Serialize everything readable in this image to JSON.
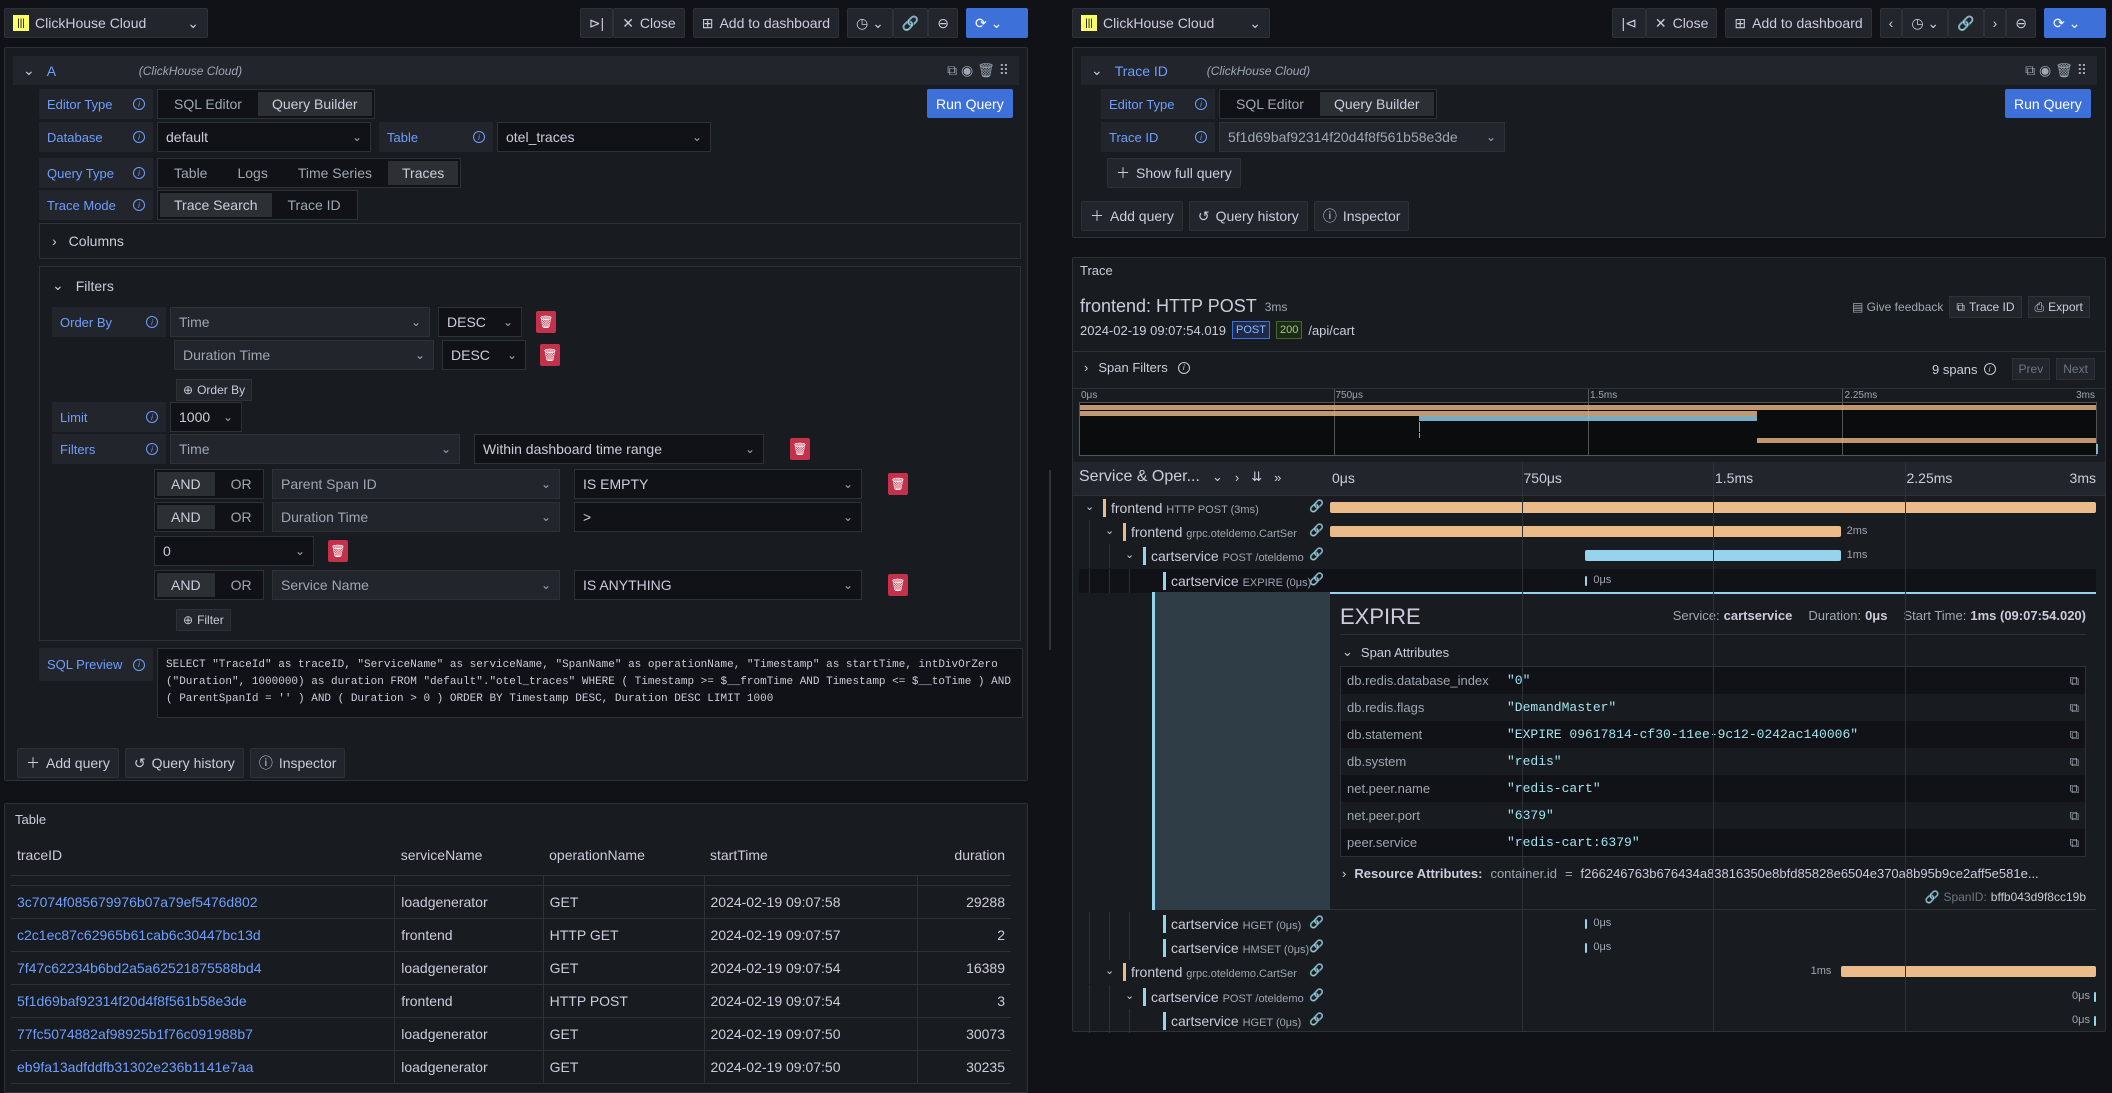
{
  "colors": {
    "accent": "#3d71d9",
    "label": "#6e9fff",
    "danger": "#c4314b",
    "span_frontend": "#ecbb8a",
    "span_cartservice": "#96d3ec"
  },
  "left": {
    "datasource": "ClickHouse Cloud",
    "toolbar": {
      "close": "Close",
      "add_to_dashboard": "Add to dashboard"
    },
    "query": {
      "ref": "A",
      "source": "(ClickHouse Cloud)",
      "run": "Run Query",
      "editor_type_label": "Editor Type",
      "editor_types": [
        "SQL Editor",
        "Query Builder"
      ],
      "database_label": "Database",
      "database": "default",
      "table_label": "Table",
      "table": "otel_traces",
      "query_type_label": "Query Type",
      "query_types": [
        "Table",
        "Logs",
        "Time Series",
        "Traces"
      ],
      "trace_mode_label": "Trace Mode",
      "trace_modes": [
        "Trace Search",
        "Trace ID"
      ],
      "columns": "Columns",
      "filters_title": "Filters",
      "order_by_label": "Order By",
      "order_by": [
        {
          "field": "Time",
          "dir": "DESC"
        },
        {
          "field": "Duration Time",
          "dir": "DESC"
        }
      ],
      "add_order_by": "Order By",
      "limit_label": "Limit",
      "limit": "1000",
      "filters_label": "Filters",
      "time_field": "Time",
      "time_op": "Within dashboard time range",
      "and": "AND",
      "or": "OR",
      "filters": [
        {
          "field": "Parent Span ID",
          "op": "IS EMPTY"
        },
        {
          "field": "Duration Time",
          "op": ">",
          "value": "0"
        },
        {
          "field": "Service Name",
          "op": "IS ANYTHING"
        }
      ],
      "add_filter": "Filter",
      "sql_label": "SQL Preview",
      "sql": "SELECT \"TraceId\" as traceID, \"ServiceName\" as serviceName, \"SpanName\" as operationName, \"Timestamp\" as startTime, intDivOrZero (\"Duration\", 1000000) as duration FROM \"default\".\"otel_traces\" WHERE ( Timestamp >= $__fromTime AND Timestamp <= $__toTime ) AND ( ParentSpanId = '' ) AND ( Duration > 0 ) ORDER BY Timestamp DESC, Duration DESC LIMIT 1000"
    },
    "actions": {
      "add_query": "Add query",
      "history": "Query history",
      "inspector": "Inspector"
    },
    "table": {
      "title": "Table",
      "columns": [
        "traceID",
        "serviceName",
        "operationName",
        "startTime",
        "duration"
      ],
      "rows": [
        [
          "3c7074f085679976b07a79ef5476d802",
          "loadgenerator",
          "GET",
          "2024-02-19 09:07:58",
          "29288"
        ],
        [
          "c2c1ec87c62965b61cab6c30447bc13d",
          "frontend",
          "HTTP GET",
          "2024-02-19 09:07:57",
          "2"
        ],
        [
          "7f47c62234b6bd2a5a62521875588bd4",
          "loadgenerator",
          "GET",
          "2024-02-19 09:07:54",
          "16389"
        ],
        [
          "5f1d69baf92314f20d4f8f561b58e3de",
          "frontend",
          "HTTP POST",
          "2024-02-19 09:07:54",
          "3"
        ],
        [
          "77fc5074882af98925b1f76c091988b7",
          "loadgenerator",
          "GET",
          "2024-02-19 09:07:50",
          "30073"
        ],
        [
          "eb9fa13adfddfb31302e236b1141e7aa",
          "loadgenerator",
          "GET",
          "2024-02-19 09:07:50",
          "30235"
        ]
      ]
    }
  },
  "right": {
    "datasource": "ClickHouse Cloud",
    "toolbar": {
      "close": "Close",
      "add_to_dashboard": "Add to dashboard"
    },
    "query": {
      "ref": "Trace ID",
      "source": "(ClickHouse Cloud)",
      "run": "Run Query",
      "editor_type_label": "Editor Type",
      "editor_types": [
        "SQL Editor",
        "Query Builder"
      ],
      "trace_id_label": "Trace ID",
      "trace_id": "5f1d69baf92314f20d4f8f561b58e3de",
      "show_full": "Show full query"
    },
    "actions": {
      "add_query": "Add query",
      "history": "Query history",
      "inspector": "Inspector"
    },
    "trace": {
      "panel_title": "Trace",
      "title": "frontend: HTTP POST",
      "duration": "3ms",
      "timestamp": "2024-02-19 09:07:54.019",
      "method": "POST",
      "status": "200",
      "url": "/api/cart",
      "feedback": "Give feedback",
      "trace_id_btn": "Trace ID",
      "export": "Export",
      "span_filters": "Span Filters",
      "span_count": "9 spans",
      "prev": "Prev",
      "next": "Next",
      "ticks": [
        "0μs",
        "750μs",
        "1.5ms",
        "2.25ms",
        "3ms"
      ],
      "column_header": "Service & Oper...",
      "total_ms": 3,
      "spans": [
        {
          "service": "frontend",
          "op": "HTTP POST (3ms)",
          "depth": 0,
          "start": 0,
          "dur": 3,
          "label": "",
          "kind": "frontend"
        },
        {
          "service": "frontend",
          "op": "grpc.oteldemo.CartSer",
          "depth": 1,
          "start": 0,
          "dur": 2,
          "label": "2ms",
          "kind": "frontend"
        },
        {
          "service": "cartservice",
          "op": "POST /oteldemo",
          "depth": 2,
          "start": 1,
          "dur": 1,
          "label": "1ms",
          "kind": "cartservice"
        },
        {
          "service": "cartservice",
          "op": "EXPIRE (0μs)",
          "depth": 3,
          "start": 1,
          "dur": 0,
          "label": "0μs",
          "kind": "cartservice",
          "selected": true
        },
        {
          "service": "cartservice",
          "op": "HGET (0μs)",
          "depth": 3,
          "start": 1,
          "dur": 0,
          "label": "0μs",
          "kind": "cartservice"
        },
        {
          "service": "cartservice",
          "op": "HMSET (0μs)",
          "depth": 3,
          "start": 1,
          "dur": 0,
          "label": "0μs",
          "kind": "cartservice"
        },
        {
          "service": "frontend",
          "op": "grpc.oteldemo.CartSer",
          "depth": 1,
          "start": 2,
          "dur": 1,
          "label": "1ms",
          "kind": "frontend",
          "label_left": true
        },
        {
          "service": "cartservice",
          "op": "POST /oteldemo",
          "depth": 2,
          "start": 3,
          "dur": 0,
          "label": "0μs",
          "kind": "cartservice"
        },
        {
          "service": "cartservice",
          "op": "HGET (0μs)",
          "depth": 3,
          "start": 3,
          "dur": 0,
          "label": "0μs",
          "kind": "cartservice"
        }
      ],
      "detail": {
        "name": "EXPIRE",
        "service_label": "Service:",
        "service": "cartservice",
        "duration_label": "Duration:",
        "duration": "0μs",
        "start_label": "Start Time:",
        "start": "1ms (09:07:54.020)",
        "attrs_title": "Span Attributes",
        "attrs": [
          [
            "db.redis.database_index",
            "\"0\""
          ],
          [
            "db.redis.flags",
            "\"DemandMaster\""
          ],
          [
            "db.statement",
            "\"EXPIRE 09617814-cf30-11ee-9c12-0242ac140006\""
          ],
          [
            "db.system",
            "\"redis\""
          ],
          [
            "net.peer.name",
            "\"redis-cart\""
          ],
          [
            "net.peer.port",
            "\"6379\""
          ],
          [
            "peer.service",
            "\"redis-cart:6379\""
          ]
        ],
        "resource_label": "Resource Attributes:",
        "resource_key": "container.id",
        "resource_value": "f266246763b676434a83816350e8bfd85828e6504e370a8b95b9ce2aff5e581e...",
        "span_id_label": "SpanID:",
        "span_id": "bffb043d9f8cc19b"
      }
    }
  }
}
